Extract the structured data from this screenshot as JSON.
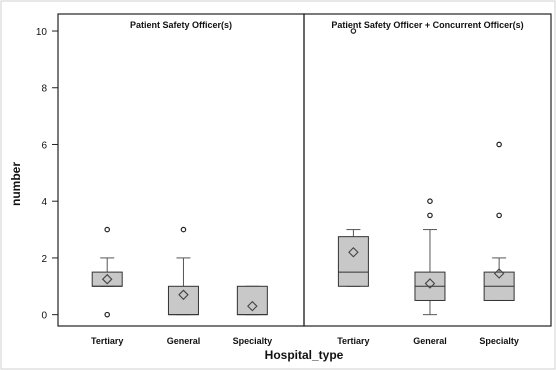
{
  "chart_data": {
    "type": "box",
    "xlabel": "Hospital_type",
    "ylabel": "number",
    "ylim": [
      -0.4,
      10.6
    ],
    "y_ticks": [
      0,
      2,
      4,
      6,
      8,
      10
    ],
    "categories": [
      "Tertiary",
      "General",
      "Specialty"
    ],
    "box_fill": "#c8c8c8",
    "panels": [
      {
        "title": "Patient Safety Officer(s)",
        "boxes": [
          {
            "category": "Tertiary",
            "whisker_low": 1,
            "q1": 1,
            "median": 1,
            "q3": 1.5,
            "whisker_high": 2,
            "mean": 1.25,
            "outliers": [
              3,
              0
            ]
          },
          {
            "category": "General",
            "whisker_low": 0,
            "q1": 0,
            "median": 0,
            "q3": 1,
            "whisker_high": 2,
            "mean": 0.7,
            "outliers": [
              3
            ]
          },
          {
            "category": "Specialty",
            "whisker_low": 0,
            "q1": 0,
            "median": 0,
            "q3": 1,
            "whisker_high": 1,
            "mean": 0.3,
            "outliers": []
          }
        ]
      },
      {
        "title": "Patient Safety Officer + Concurrent Officer(s)",
        "boxes": [
          {
            "category": "Tertiary",
            "whisker_low": 1,
            "q1": 1,
            "median": 1.5,
            "q3": 2.75,
            "whisker_high": 3,
            "mean": 2.2,
            "outliers": [
              10
            ]
          },
          {
            "category": "General",
            "whisker_low": 0,
            "q1": 0.5,
            "median": 1,
            "q3": 1.5,
            "whisker_high": 3,
            "mean": 1.1,
            "outliers": [
              3.5,
              4
            ]
          },
          {
            "category": "Specialty",
            "whisker_low": 0.5,
            "q1": 0.5,
            "median": 1,
            "q3": 1.5,
            "whisker_high": 2,
            "mean": 1.45,
            "outliers": [
              3.5,
              6
            ]
          }
        ]
      }
    ]
  }
}
